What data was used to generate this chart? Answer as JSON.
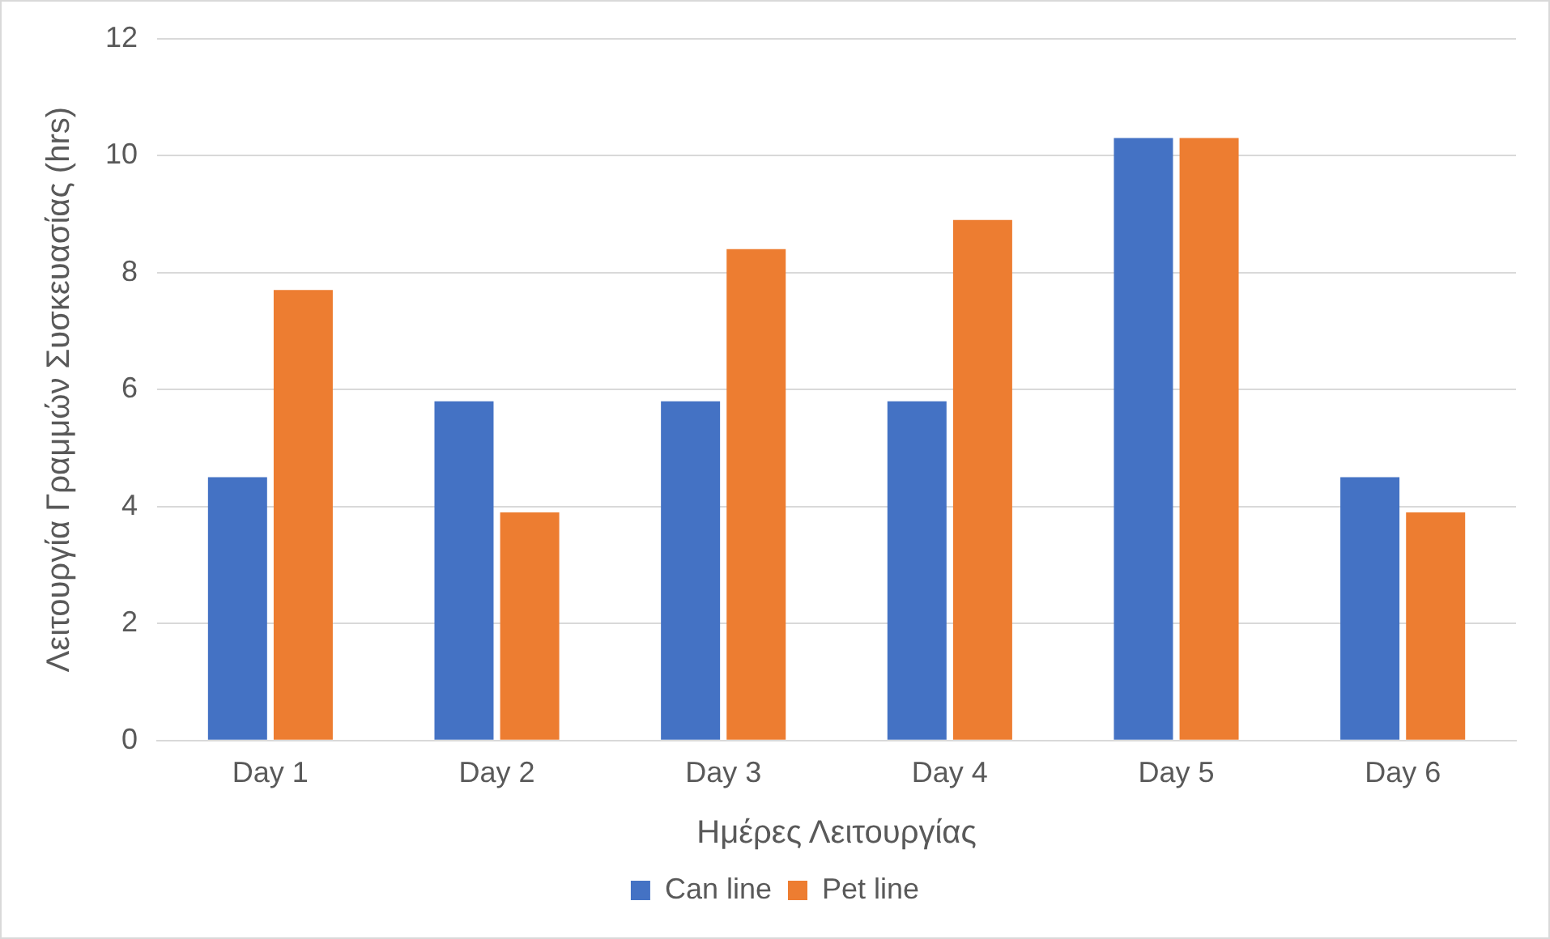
{
  "chart_data": {
    "type": "bar",
    "xlabel": "Ημέρες Λειτουργίας",
    "ylabel": "Λειτουργία Γραμμών Συσκευασίας (hrs)",
    "categories": [
      "Day 1",
      "Day 2",
      "Day 3",
      "Day 4",
      "Day 5",
      "Day 6"
    ],
    "series": [
      {
        "name": "Can line",
        "color": "#4472c4",
        "values": [
          4.5,
          5.8,
          5.8,
          5.8,
          10.3,
          4.5
        ]
      },
      {
        "name": "Pet line",
        "color": "#ed7d31",
        "values": [
          7.7,
          3.9,
          8.4,
          8.9,
          10.3,
          3.9
        ]
      }
    ],
    "ylim": [
      0,
      12
    ],
    "yticks": [
      0,
      2,
      4,
      6,
      8,
      10,
      12
    ],
    "grid": "y",
    "legend": "bottom"
  }
}
